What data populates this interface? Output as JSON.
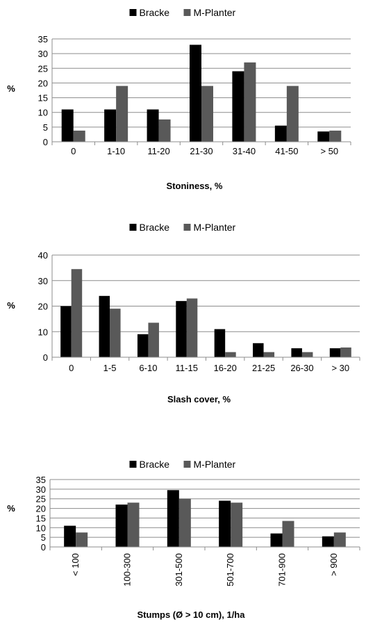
{
  "chart_data": [
    {
      "type": "bar",
      "title": "",
      "xlabel": "Stoniness, %",
      "ylabel": "%",
      "categories": [
        "0",
        "1-10",
        "11-20",
        "21-30",
        "31-40",
        "41-50",
        "> 50"
      ],
      "series": [
        {
          "name": "Bracke",
          "color": "#000000",
          "values": [
            11,
            11,
            11,
            33,
            24,
            5.5,
            3.5
          ]
        },
        {
          "name": "M-Planter",
          "color": "#595959",
          "values": [
            3.8,
            19,
            7.6,
            19,
            27,
            19,
            3.8
          ]
        }
      ],
      "ylim": [
        0,
        35
      ],
      "yticks": [
        "0",
        "5",
        "10",
        "15",
        "20",
        "25",
        "30",
        "35"
      ],
      "grid": true,
      "legend": "top-center"
    },
    {
      "type": "bar",
      "title": "",
      "xlabel": "Slash cover, %",
      "ylabel": "%",
      "categories": [
        "0",
        "1-5",
        "6-10",
        "11-15",
        "16-20",
        "21-25",
        "26-30",
        "> 30"
      ],
      "series": [
        {
          "name": "Bracke",
          "color": "#000000",
          "values": [
            20,
            24,
            9,
            22,
            11,
            5.5,
            3.5,
            3.5
          ]
        },
        {
          "name": "M-Planter",
          "color": "#595959",
          "values": [
            34.5,
            19,
            13.5,
            23,
            2,
            2,
            2,
            3.8
          ]
        }
      ],
      "ylim": [
        0,
        40
      ],
      "yticks": [
        "0",
        "10",
        "20",
        "30",
        "40"
      ],
      "grid": true,
      "legend": "top-center"
    },
    {
      "type": "bar",
      "title": "",
      "xlabel": "Stumps (Ø > 10 cm), 1/ha",
      "ylabel": "%",
      "categories": [
        "< 100",
        "100-300",
        "301-500",
        "501-700",
        "701-900",
        "> 900"
      ],
      "series": [
        {
          "name": "Bracke",
          "color": "#000000",
          "values": [
            11,
            22,
            29.5,
            24,
            7,
            5.5
          ]
        },
        {
          "name": "M-Planter",
          "color": "#595959",
          "values": [
            7.5,
            23,
            25,
            23,
            13.5,
            7.5
          ]
        }
      ],
      "ylim": [
        0,
        35
      ],
      "yticks": [
        "0",
        "5",
        "10",
        "15",
        "20",
        "25",
        "30",
        "35"
      ],
      "grid": true,
      "legend": "top-center",
      "rotated_category_labels": true
    }
  ]
}
